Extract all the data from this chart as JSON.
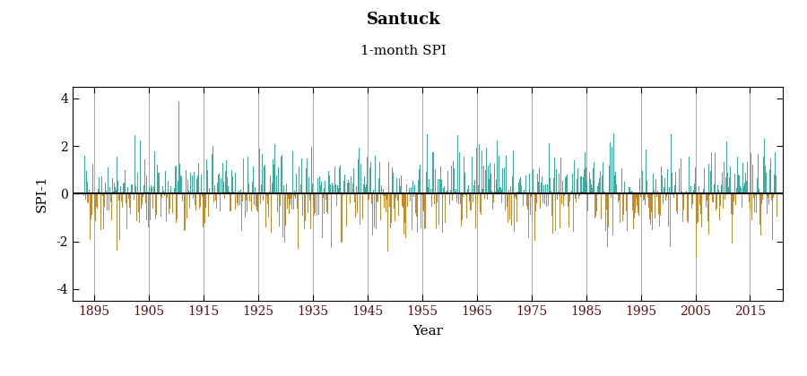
{
  "title": "Santuck",
  "subtitle": "1-month SPI",
  "xlabel": "Year",
  "ylabel": "SPI-1",
  "xlim": [
    1891,
    2021
  ],
  "ylim": [
    -4.5,
    4.5
  ],
  "yticks": [
    -4,
    -2,
    0,
    2,
    4
  ],
  "xticks": [
    1895,
    1905,
    1915,
    1925,
    1935,
    1945,
    1955,
    1965,
    1975,
    1985,
    1995,
    2005,
    2015
  ],
  "vgrid_years": [
    1895,
    1905,
    1915,
    1925,
    1935,
    1945,
    1955,
    1965,
    1975,
    1985,
    1995,
    2005,
    2015
  ],
  "color_positive": "#3aaba0",
  "color_negative": "#c8882a",
  "color_zero_line": "#000000",
  "title_fontsize": 13,
  "subtitle_fontsize": 11,
  "label_fontsize": 11,
  "tick_fontsize": 10,
  "tick_color": "#5c1010",
  "background_color": "#ffffff",
  "start_year": 1893,
  "end_year": 2020
}
